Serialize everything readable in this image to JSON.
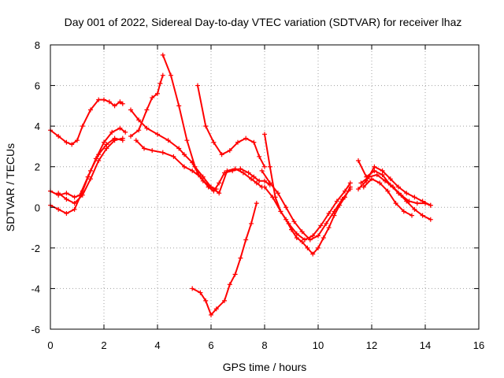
{
  "chart_data": {
    "type": "scatter",
    "title": "Day 001 of 2022, Sidereal Day-to-day VTEC variation (SDTVAR) for receiver lhaz",
    "xlabel": "GPS time / hours",
    "ylabel": "SDTVAR / TECUs",
    "xlim": [
      0,
      16
    ],
    "ylim": [
      -6,
      8
    ],
    "xticks": [
      0,
      2,
      4,
      6,
      8,
      10,
      12,
      14,
      16
    ],
    "yticks": [
      -6,
      -4,
      -2,
      0,
      2,
      4,
      6,
      8
    ],
    "grid": true,
    "marker": "+",
    "color": "#ff0000",
    "series": [
      {
        "x": [
          0.0,
          0.3,
          0.6,
          0.8,
          1.0,
          1.2,
          1.5,
          1.8,
          2.0,
          2.2,
          2.4,
          2.6,
          2.7
        ],
        "y": [
          3.8,
          3.5,
          3.2,
          3.1,
          3.3,
          4.0,
          4.8,
          5.3,
          5.3,
          5.2,
          5.0,
          5.2,
          5.1
        ]
      },
      {
        "x": [
          0.0,
          0.3,
          0.6,
          0.9,
          1.1,
          1.4,
          1.7,
          2.0,
          2.3,
          2.6,
          2.8
        ],
        "y": [
          0.8,
          0.6,
          0.7,
          0.5,
          0.6,
          1.5,
          2.4,
          3.2,
          3.7,
          3.9,
          3.7
        ]
      },
      {
        "x": [
          0.0,
          0.3,
          0.6,
          0.9,
          1.2,
          1.5,
          1.8,
          2.1,
          2.4,
          2.7
        ],
        "y": [
          0.1,
          -0.1,
          -0.3,
          -0.1,
          0.8,
          1.8,
          2.6,
          3.1,
          3.4,
          3.3
        ]
      },
      {
        "x": [
          0.3,
          0.6,
          0.9,
          1.2,
          1.5,
          1.8,
          2.1,
          2.4,
          2.7
        ],
        "y": [
          0.7,
          0.4,
          0.2,
          0.6,
          1.4,
          2.3,
          2.9,
          3.3,
          3.4
        ]
      },
      {
        "x": [
          3.0,
          3.3,
          3.6,
          3.8,
          4.0,
          4.1,
          4.2
        ],
        "y": [
          3.5,
          3.8,
          4.8,
          5.4,
          5.6,
          6.1,
          6.5
        ]
      },
      {
        "x": [
          3.0,
          3.3,
          3.6,
          4.0,
          4.4,
          4.8,
          5.0,
          5.3,
          5.5,
          5.7,
          6.0,
          6.2
        ],
        "y": [
          4.8,
          4.3,
          3.9,
          3.6,
          3.3,
          2.9,
          2.6,
          2.2,
          1.7,
          1.3,
          1.0,
          0.9
        ]
      },
      {
        "x": [
          3.2,
          3.5,
          3.8,
          4.2,
          4.6,
          5.0,
          5.3,
          5.6,
          5.9,
          6.1,
          6.3,
          6.5,
          6.8,
          7.1,
          7.4,
          7.6,
          7.8,
          8.0,
          8.2
        ],
        "y": [
          3.3,
          2.9,
          2.8,
          2.7,
          2.5,
          2.0,
          1.8,
          1.5,
          1.0,
          0.8,
          1.2,
          1.7,
          1.8,
          1.9,
          1.7,
          1.5,
          1.3,
          1.3,
          1.1
        ]
      },
      {
        "x": [
          4.2,
          4.5,
          4.8,
          5.1,
          5.4,
          5.7,
          6.0,
          6.3,
          6.6,
          6.9,
          7.2,
          7.5,
          7.7,
          7.9
        ],
        "y": [
          7.5,
          6.5,
          5.0,
          3.3,
          2.0,
          1.5,
          1.0,
          0.7,
          1.8,
          1.9,
          1.7,
          1.4,
          1.2,
          1.0
        ]
      },
      {
        "x": [
          5.5,
          5.8,
          6.1,
          6.4,
          6.7,
          7.0,
          7.3,
          7.6,
          7.8,
          8.0
        ],
        "y": [
          6.0,
          4.0,
          3.2,
          2.6,
          2.8,
          3.2,
          3.4,
          3.2,
          2.5,
          2.0
        ]
      },
      {
        "x": [
          5.3,
          5.6,
          5.8,
          6.0,
          6.2,
          6.5,
          6.7,
          6.9,
          7.1,
          7.3,
          7.5,
          7.7
        ],
        "y": [
          -4.0,
          -4.2,
          -4.6,
          -5.3,
          -5.0,
          -4.6,
          -3.8,
          -3.3,
          -2.5,
          -1.6,
          -0.8,
          0.2
        ]
      },
      {
        "x": [
          8.0,
          8.2,
          8.4,
          8.6,
          8.8,
          9.0,
          9.2,
          9.4,
          9.6,
          9.8,
          10.0,
          10.2,
          10.4,
          10.6,
          10.8,
          11.0,
          11.2
        ],
        "y": [
          3.6,
          2.0,
          0.5,
          -0.2,
          -0.6,
          -1.1,
          -1.5,
          -1.7,
          -2.0,
          -2.3,
          -2.0,
          -1.5,
          -1.0,
          -0.4,
          0.1,
          0.5,
          1.0
        ]
      },
      {
        "x": [
          7.9,
          8.2,
          8.5,
          8.8,
          9.1,
          9.4,
          9.7,
          10.0,
          10.3,
          10.6,
          10.9,
          11.2
        ],
        "y": [
          1.8,
          1.2,
          0.7,
          0.0,
          -0.7,
          -1.2,
          -1.6,
          -1.4,
          -0.8,
          -0.2,
          0.4,
          0.9
        ]
      },
      {
        "x": [
          8.0,
          8.3,
          8.6,
          8.9,
          9.2,
          9.5,
          9.8,
          10.1,
          10.4,
          10.7,
          11.0,
          11.2
        ],
        "y": [
          1.0,
          0.5,
          -0.2,
          -0.8,
          -1.3,
          -1.6,
          -1.4,
          -0.9,
          -0.3,
          0.3,
          0.8,
          1.2
        ]
      },
      {
        "x": [
          11.5,
          11.8,
          12.1,
          12.4,
          12.7,
          13.0,
          13.3,
          13.6,
          13.9,
          14.2
        ],
        "y": [
          2.3,
          1.5,
          1.8,
          1.6,
          1.1,
          0.7,
          0.3,
          -0.1,
          -0.4,
          -0.6
        ]
      },
      {
        "x": [
          11.5,
          11.8,
          12.1,
          12.4,
          12.7,
          13.0,
          13.3,
          13.6,
          13.9,
          14.2
        ],
        "y": [
          0.9,
          1.3,
          2.0,
          1.8,
          1.4,
          1.0,
          0.7,
          0.5,
          0.3,
          0.1
        ]
      },
      {
        "x": [
          11.6,
          11.9,
          12.2,
          12.5,
          12.8,
          13.1,
          13.4,
          13.7,
          14.0,
          14.2
        ],
        "y": [
          1.2,
          1.5,
          1.6,
          1.3,
          1.0,
          0.6,
          0.3,
          0.2,
          0.2,
          0.1
        ]
      },
      {
        "x": [
          11.7,
          12.0,
          12.3,
          12.6,
          12.9,
          13.2,
          13.5
        ],
        "y": [
          1.0,
          1.4,
          1.2,
          0.8,
          0.2,
          -0.2,
          -0.4
        ]
      }
    ]
  }
}
